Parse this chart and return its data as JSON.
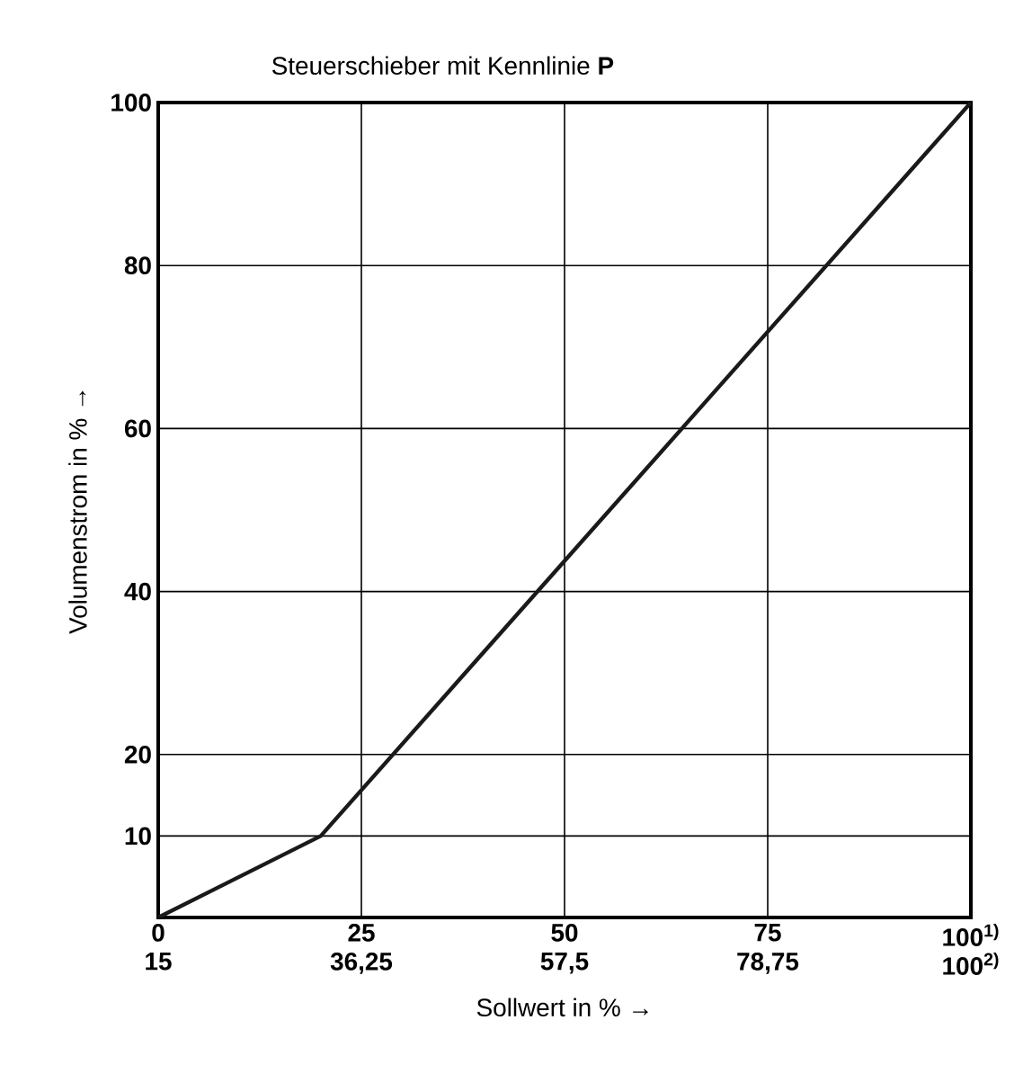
{
  "chart_data": {
    "type": "line",
    "title": "Steuerschieber mit Kennlinie **P**",
    "xlabel": "Sollwert in % →",
    "ylabel": "Volumenstrom in % →",
    "xlim": [
      0,
      100
    ],
    "xticks": [
      0,
      25,
      50,
      75,
      {
        "value": 100,
        "label": "100$^{1)}$"
      }
    ],
    "x2lim": [
      15,
      100
    ],
    "x2ticks": [
      15,
      {
        "value": 36.25,
        "label": "36,25"
      },
      {
        "value": 57.5,
        "label": "57,5"
      },
      {
        "value": 78.75,
        "label": "78,75"
      },
      {
        "value": 100,
        "label": "100$^{2)}$"
      }
    ],
    "ylim": [
      0,
      100
    ],
    "yticks": [
      10,
      20,
      40,
      60,
      80,
      100
    ],
    "grid": true,
    "series": [
      {
        "x": [
          0,
          20,
          100
        ],
        "values": [
          0,
          10,
          100
        ],
        "color": "#1a1a1a"
      }
    ]
  }
}
